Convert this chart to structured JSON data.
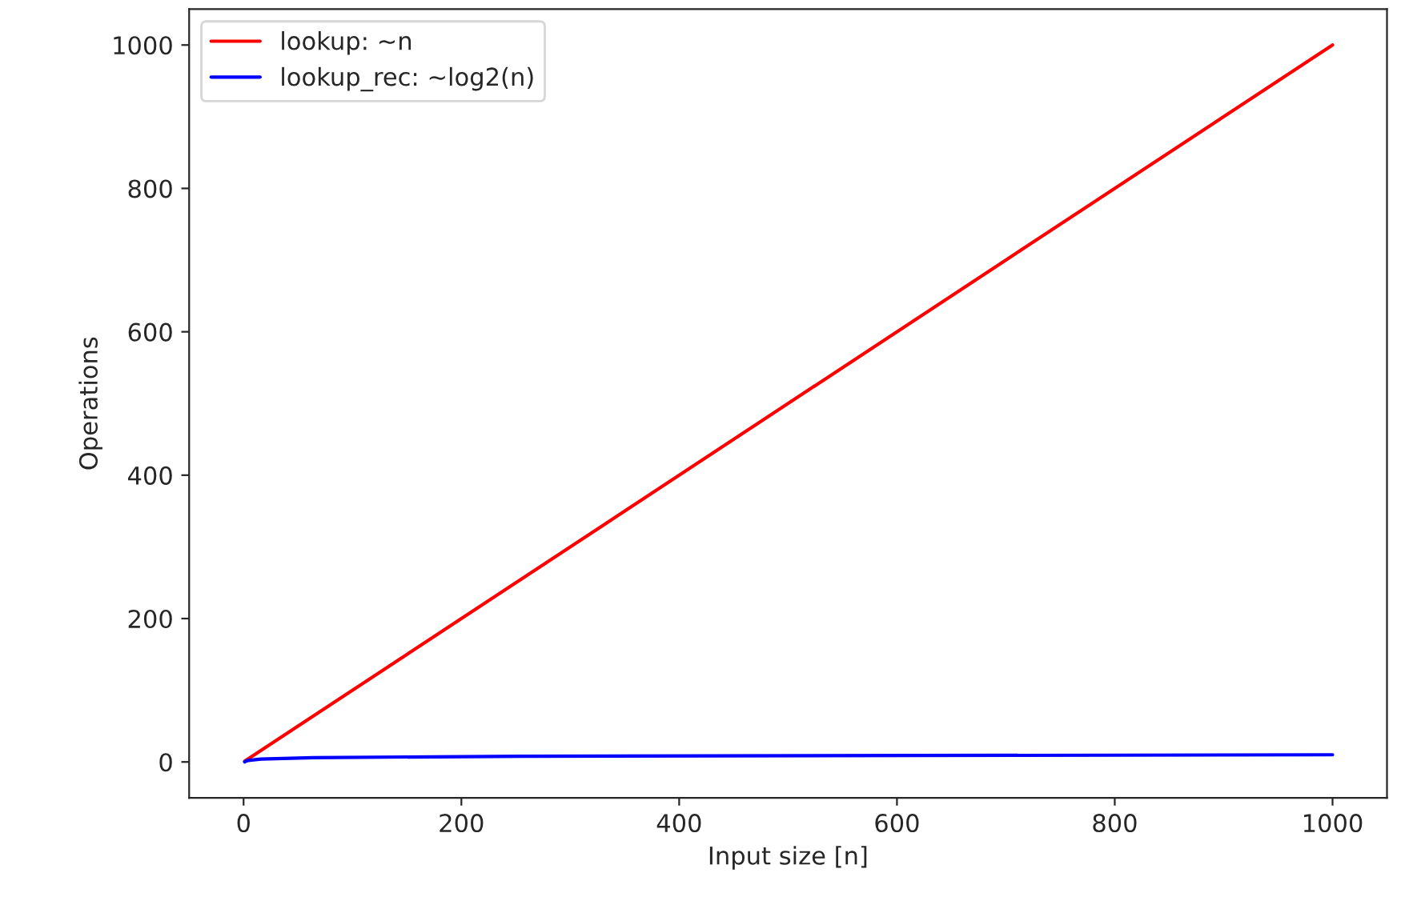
{
  "chart_data": {
    "type": "line",
    "xlabel": "Input size [n]",
    "ylabel": "Operations",
    "series": [
      {
        "name": "lookup: ~n",
        "color": "#ff0000",
        "x": [
          1,
          1000
        ],
        "values": [
          1,
          1000
        ]
      },
      {
        "name": "lookup_rec: ~log2(n)",
        "color": "#0000ff",
        "x": [
          1,
          2,
          4,
          16,
          64,
          256,
          1000
        ],
        "values": [
          0,
          1,
          2,
          4,
          6,
          8,
          10
        ]
      }
    ],
    "xlim": [
      -50,
      1050
    ],
    "ylim": [
      -50,
      1050
    ],
    "xticks": [
      0,
      200,
      400,
      600,
      800,
      1000
    ],
    "yticks": [
      0,
      200,
      400,
      600,
      800,
      1000
    ],
    "grid": false,
    "legend": "top left",
    "marker": "none",
    "line_style": "solid"
  }
}
